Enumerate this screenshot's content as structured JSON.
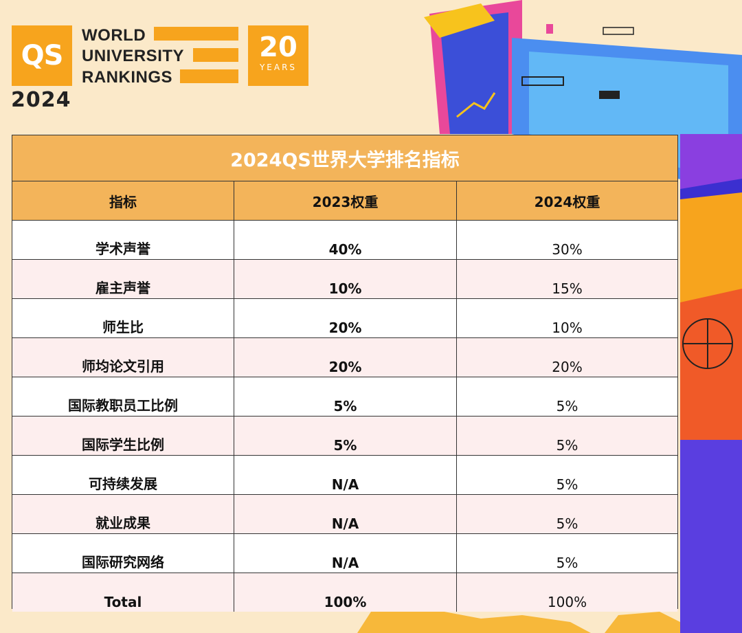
{
  "logo": {
    "qs": "QS",
    "line1": "WORLD",
    "line2": "UNIVERSITY",
    "line3": "RANKINGS",
    "year": "2024",
    "anniversary_number": "20",
    "anniversary_word": "YEARS"
  },
  "colors": {
    "accent": "#f7a41d",
    "header_fill": "#f3b45a",
    "row_alt": "#fdeeee",
    "background": "#fbe9c9"
  },
  "table": {
    "title": "2024QS世界大学排名指标",
    "headers": [
      "指标",
      "2023权重",
      "2024权重"
    ],
    "rows": [
      [
        "学术声誉",
        "40%",
        "30%"
      ],
      [
        "雇主声誉",
        "10%",
        "15%"
      ],
      [
        "师生比",
        "20%",
        "10%"
      ],
      [
        "师均论文引用",
        "20%",
        "20%"
      ],
      [
        "国际教职员工比例",
        "5%",
        "5%"
      ],
      [
        "国际学生比例",
        "5%",
        "5%"
      ],
      [
        "可持续发展",
        "N/A",
        "5%"
      ],
      [
        "就业成果",
        "N/A",
        "5%"
      ],
      [
        "国际研究网络",
        "N/A",
        "5%"
      ],
      [
        "Total",
        "100%",
        "100%"
      ]
    ]
  }
}
